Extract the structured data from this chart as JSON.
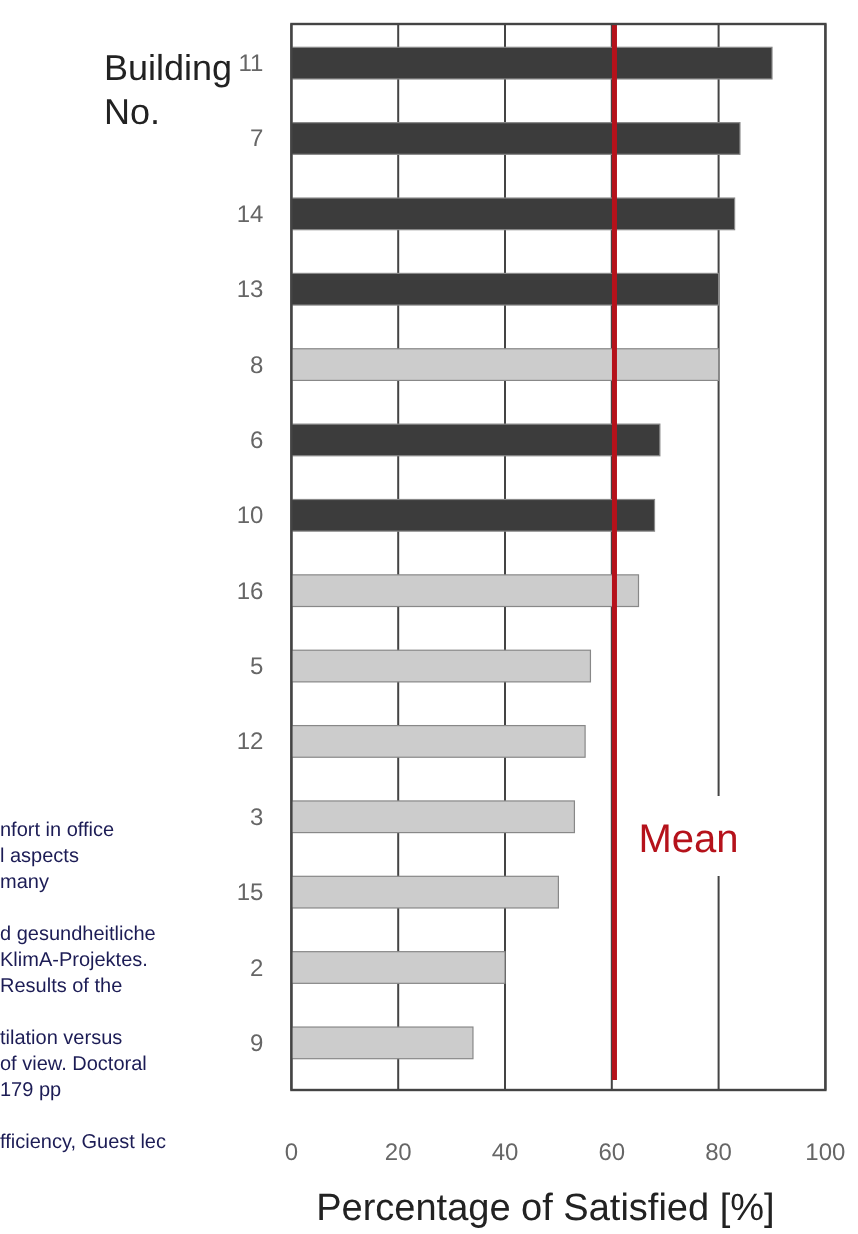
{
  "chart_data": {
    "type": "bar",
    "orientation": "horizontal",
    "ylabel": "Building No.",
    "xlabel": "Percentage of Satisfied [%]",
    "categories": [
      "11",
      "7",
      "14",
      "13",
      "8",
      "6",
      "10",
      "16",
      "5",
      "12",
      "3",
      "15",
      "2",
      "9"
    ],
    "values": [
      90,
      84,
      83,
      80,
      80,
      69,
      68,
      65,
      56,
      55,
      53,
      50,
      40,
      34
    ],
    "colors": [
      "#3c3c3c",
      "#3c3c3c",
      "#3c3c3c",
      "#3c3c3c",
      "#cccccc",
      "#3c3c3c",
      "#3c3c3c",
      "#cccccc",
      "#cccccc",
      "#cccccc",
      "#cccccc",
      "#cccccc",
      "#cccccc",
      "#cccccc"
    ],
    "xlim": [
      0,
      100
    ],
    "xticks": [
      0,
      20,
      40,
      60,
      80,
      100
    ],
    "grid": "x",
    "ref_lines": [
      {
        "axis": "x",
        "value": 60.5,
        "label": "Mean",
        "color": "#b5121b"
      }
    ],
    "annotations": [
      "nfort in office",
      "l aspects",
      "many",
      "d gesundheitliche",
      "KlimA-Projektes.",
      "Results of the",
      "tilation versus",
      "of view. Doctoral",
      "179 pp",
      "fficiency, Guest lec"
    ]
  }
}
